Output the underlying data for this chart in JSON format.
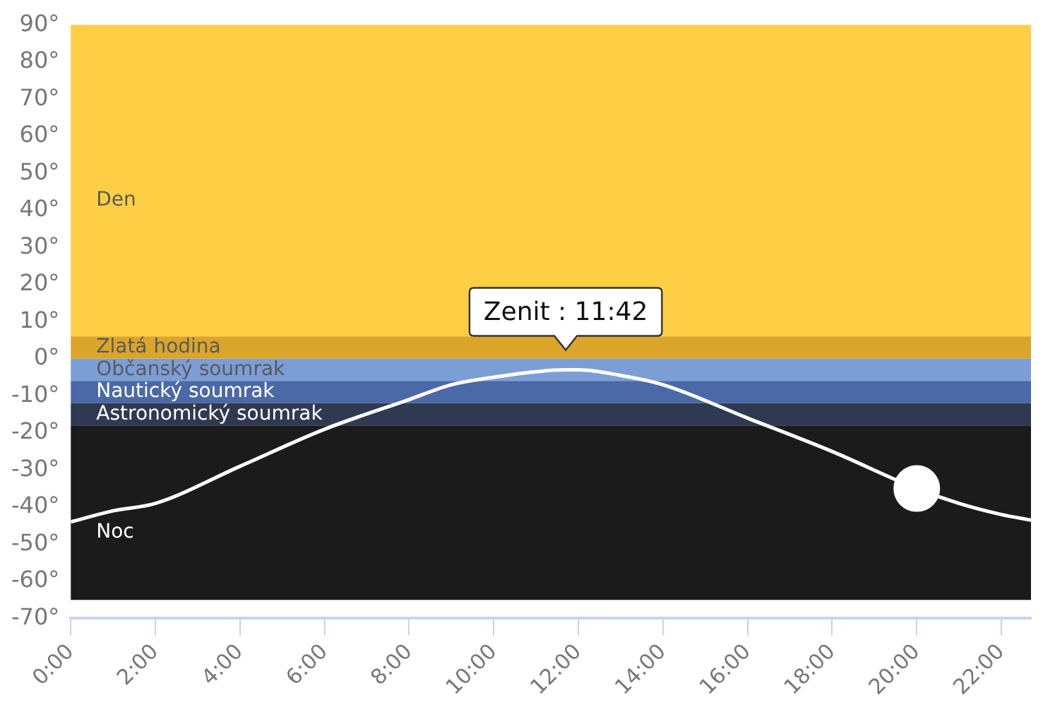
{
  "chart_data": {
    "type": "line",
    "xlim": [
      0,
      22.7
    ],
    "xticks": [
      {
        "value": 0,
        "label": "0:00"
      },
      {
        "value": 2,
        "label": "2:00"
      },
      {
        "value": 4,
        "label": "4:00"
      },
      {
        "value": 6,
        "label": "6:00"
      },
      {
        "value": 8,
        "label": "8:00"
      },
      {
        "value": 10,
        "label": "10:00"
      },
      {
        "value": 12,
        "label": "12:00"
      },
      {
        "value": 14,
        "label": "14:00"
      },
      {
        "value": 16,
        "label": "16:00"
      },
      {
        "value": 18,
        "label": "18:00"
      },
      {
        "value": 20,
        "label": "20:00"
      },
      {
        "value": 22,
        "label": "22:00"
      }
    ],
    "ylim": [
      -70,
      90
    ],
    "yticks": [
      {
        "value": 90,
        "label": "90°"
      },
      {
        "value": 80,
        "label": "80°"
      },
      {
        "value": 70,
        "label": "70°"
      },
      {
        "value": 60,
        "label": "60°"
      },
      {
        "value": 50,
        "label": "50°"
      },
      {
        "value": 40,
        "label": "40°"
      },
      {
        "value": 30,
        "label": "30°"
      },
      {
        "value": 20,
        "label": "20°"
      },
      {
        "value": 10,
        "label": "10°"
      },
      {
        "value": 0,
        "label": "0°"
      },
      {
        "value": -10,
        "label": "-10°"
      },
      {
        "value": -20,
        "label": "-20°"
      },
      {
        "value": -30,
        "label": "-30°"
      },
      {
        "value": -40,
        "label": "-40°"
      },
      {
        "value": -50,
        "label": "-50°"
      },
      {
        "value": -60,
        "label": "-60°"
      },
      {
        "value": -70,
        "label": "-70°"
      }
    ],
    "grid": false,
    "legend": false,
    "marker": "none",
    "bands": [
      {
        "axis": "y",
        "from": 6,
        "to": 90,
        "label": "Den",
        "color": "#fecf45"
      },
      {
        "axis": "y",
        "from": 0,
        "to": 6,
        "label": "Zlatá hodina",
        "color": "#dba52a"
      },
      {
        "axis": "y",
        "from": -6,
        "to": 0,
        "label": "Občanský soumrak",
        "color": "#7c9ed6"
      },
      {
        "axis": "y",
        "from": -12,
        "to": -6,
        "label": "Nautický soumrak",
        "color": "#4a69a6"
      },
      {
        "axis": "y",
        "from": -18,
        "to": -12,
        "label": "Astronomický soumrak",
        "color": "#2f3a52"
      },
      {
        "axis": "y",
        "from": -65,
        "to": -18,
        "label": "Noc",
        "color": "#1b1b1b"
      }
    ],
    "series": [
      {
        "color": "#ffffff",
        "x": [
          0,
          1,
          2,
          4,
          6,
          8,
          9,
          10,
          11,
          11.7,
          12,
          13,
          14,
          16,
          18,
          20,
          21,
          22,
          22.7
        ],
        "values": [
          -44,
          -41,
          -39,
          -29,
          -19,
          -11,
          -7,
          -5,
          -3.5,
          -3,
          -3,
          -4.5,
          -7,
          -16,
          -25,
          -35,
          -39,
          -42,
          -43.5
        ]
      },
      {
        "type": "scatter",
        "color": "#ffffff",
        "marker": "circle",
        "x": [
          20
        ],
        "values": [
          -35
        ]
      }
    ],
    "annotations": [
      {
        "text": "Zenit : 11:42",
        "x": 11.7,
        "y": -3
      }
    ]
  }
}
